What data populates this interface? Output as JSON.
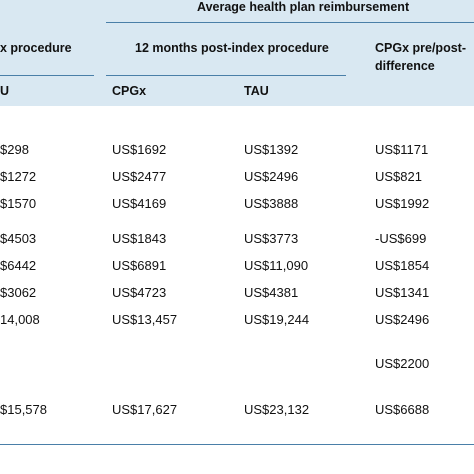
{
  "colors": {
    "band": "#d9e8f2",
    "rule": "#4a7fa8"
  },
  "headers": {
    "top": "Average health plan reimbursement",
    "pre_index": "x procedure",
    "post_index": "12 months post-index procedure",
    "difference_line1": "CPGx pre/post-",
    "difference_line2": "difference",
    "sub_tau_left": "U",
    "sub_cpgx": "CPGx",
    "sub_tau": "TAU"
  },
  "rows": [
    {
      "pre_tau": "$298",
      "post_cpgx": "US$1692",
      "post_tau": "US$1392",
      "diff": "US$1171"
    },
    {
      "pre_tau": "$1272",
      "post_cpgx": "US$2477",
      "post_tau": "US$2496",
      "diff": "US$821"
    },
    {
      "pre_tau": "$1570",
      "post_cpgx": "US$4169",
      "post_tau": "US$3888",
      "diff": "US$1992"
    },
    {
      "pre_tau": "$4503",
      "post_cpgx": "US$1843",
      "post_tau": "US$3773",
      "diff": "-US$699"
    },
    {
      "pre_tau": "$6442",
      "post_cpgx": "US$6891",
      "post_tau": "US$11,090",
      "diff": "US$1854"
    },
    {
      "pre_tau": "$3062",
      "post_cpgx": "US$4723",
      "post_tau": "US$4381",
      "diff": "US$1341"
    },
    {
      "pre_tau": "14,008",
      "post_cpgx": "US$13,457",
      "post_tau": "US$19,244",
      "diff": "US$2496"
    },
    {
      "pre_tau": "",
      "post_cpgx": "",
      "post_tau": "",
      "diff": "US$2200"
    },
    {
      "pre_tau": "$15,578",
      "post_cpgx": "US$17,627",
      "post_tau": "US$23,132",
      "diff": "US$6688"
    }
  ]
}
